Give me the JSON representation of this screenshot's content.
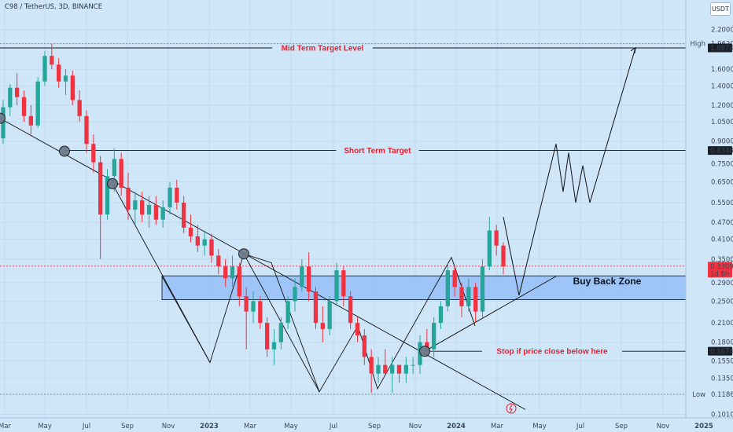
{
  "header": {
    "symbol_line": "C98 / TetherUS, 3D, BINANCE",
    "currency_button": "USDT"
  },
  "colors": {
    "background": "#cfe6f9",
    "up_candle": "#26a69a",
    "down_candle": "#ef3340",
    "annotation_red": "#e8202f",
    "zone_fill": "#8fb8f5",
    "line": "#222222"
  },
  "chart_data": {
    "type": "candlestick",
    "y_scale": "log",
    "ylim": [
      0.095,
      2.35
    ],
    "x_tick_labels": [
      "Mar",
      "May",
      "Jul",
      "Sep",
      "Nov",
      "2023",
      "Mar",
      "May",
      "Jul",
      "Sep",
      "Nov",
      "2024",
      "Mar",
      "May",
      "Jul",
      "Sep",
      "Nov",
      "2025"
    ],
    "y_tick_labels": [
      "2.2000",
      "1.9620",
      "1.6000",
      "1.4000",
      "1.2000",
      "1.0500",
      "0.9000",
      "0.7500",
      "0.6500",
      "0.5500",
      "0.4700",
      "0.4100",
      "0.3500",
      "0.2900",
      "0.2500",
      "0.2100",
      "0.1800",
      "0.1550",
      "0.1350",
      "0.1186",
      "0.1010"
    ],
    "price_badges": [
      {
        "label": "High",
        "value": "1.9620",
        "style": "plain"
      },
      {
        "label": "",
        "value": "1.8974",
        "style": "dark"
      },
      {
        "label": "",
        "value": "0.8348",
        "style": "dark"
      },
      {
        "label": "",
        "value": "0.3309",
        "sub": "1d 8h",
        "style": "red"
      },
      {
        "label": "",
        "value": "0.1674",
        "style": "dark"
      },
      {
        "label": "Low",
        "value": "0.1186",
        "style": "plain"
      }
    ],
    "levels": [
      {
        "price": 1.8974,
        "label": "Mid Term Target Level"
      },
      {
        "price": 0.8348,
        "label": "Short Term Target"
      },
      {
        "price": 0.1674,
        "label": "Stop if price close below here"
      }
    ],
    "zone": {
      "low": 0.253,
      "high": 0.306,
      "label": "Buy Back Zone"
    },
    "candles": [
      [
        0.92,
        1.25,
        0.88,
        1.18
      ],
      [
        1.18,
        1.42,
        1.1,
        1.38
      ],
      [
        1.38,
        1.55,
        1.2,
        1.28
      ],
      [
        1.28,
        1.35,
        1.05,
        1.1
      ],
      [
        1.1,
        1.2,
        0.95,
        1.02
      ],
      [
        1.02,
        1.5,
        1.0,
        1.45
      ],
      [
        1.45,
        1.85,
        1.4,
        1.78
      ],
      [
        1.78,
        1.96,
        1.6,
        1.66
      ],
      [
        1.66,
        1.75,
        1.38,
        1.45
      ],
      [
        1.45,
        1.6,
        1.3,
        1.52
      ],
      [
        1.52,
        1.58,
        1.2,
        1.25
      ],
      [
        1.25,
        1.35,
        1.05,
        1.1
      ],
      [
        1.1,
        1.15,
        0.82,
        0.88
      ],
      [
        0.88,
        0.95,
        0.7,
        0.76
      ],
      [
        0.76,
        0.8,
        0.35,
        0.5
      ],
      [
        0.5,
        0.72,
        0.48,
        0.68
      ],
      [
        0.68,
        0.85,
        0.6,
        0.78
      ],
      [
        0.78,
        0.82,
        0.58,
        0.62
      ],
      [
        0.62,
        0.7,
        0.48,
        0.52
      ],
      [
        0.52,
        0.6,
        0.46,
        0.56
      ],
      [
        0.56,
        0.6,
        0.47,
        0.5
      ],
      [
        0.5,
        0.58,
        0.45,
        0.54
      ],
      [
        0.54,
        0.58,
        0.46,
        0.48
      ],
      [
        0.48,
        0.56,
        0.45,
        0.53
      ],
      [
        0.53,
        0.65,
        0.5,
        0.62
      ],
      [
        0.62,
        0.66,
        0.52,
        0.55
      ],
      [
        0.55,
        0.58,
        0.43,
        0.45
      ],
      [
        0.45,
        0.5,
        0.4,
        0.42
      ],
      [
        0.42,
        0.46,
        0.37,
        0.39
      ],
      [
        0.39,
        0.44,
        0.36,
        0.41
      ],
      [
        0.41,
        0.43,
        0.34,
        0.36
      ],
      [
        0.36,
        0.38,
        0.31,
        0.33
      ],
      [
        0.33,
        0.35,
        0.28,
        0.3
      ],
      [
        0.3,
        0.36,
        0.28,
        0.33
      ],
      [
        0.33,
        0.34,
        0.24,
        0.26
      ],
      [
        0.26,
        0.28,
        0.17,
        0.23
      ],
      [
        0.23,
        0.27,
        0.21,
        0.25
      ],
      [
        0.25,
        0.26,
        0.2,
        0.21
      ],
      [
        0.21,
        0.22,
        0.16,
        0.17
      ],
      [
        0.17,
        0.2,
        0.15,
        0.18
      ],
      [
        0.18,
        0.22,
        0.17,
        0.21
      ],
      [
        0.21,
        0.26,
        0.2,
        0.25
      ],
      [
        0.25,
        0.3,
        0.23,
        0.28
      ],
      [
        0.28,
        0.35,
        0.27,
        0.33
      ],
      [
        0.33,
        0.37,
        0.25,
        0.27
      ],
      [
        0.27,
        0.28,
        0.2,
        0.21
      ],
      [
        0.21,
        0.24,
        0.18,
        0.2
      ],
      [
        0.2,
        0.26,
        0.19,
        0.25
      ],
      [
        0.25,
        0.34,
        0.24,
        0.32
      ],
      [
        0.32,
        0.33,
        0.24,
        0.26
      ],
      [
        0.26,
        0.27,
        0.2,
        0.21
      ],
      [
        0.21,
        0.22,
        0.18,
        0.19
      ],
      [
        0.19,
        0.2,
        0.15,
        0.16
      ],
      [
        0.16,
        0.17,
        0.12,
        0.14
      ],
      [
        0.14,
        0.16,
        0.13,
        0.15
      ],
      [
        0.15,
        0.17,
        0.14,
        0.14
      ],
      [
        0.14,
        0.16,
        0.12,
        0.15
      ],
      [
        0.15,
        0.15,
        0.13,
        0.14
      ],
      [
        0.14,
        0.16,
        0.13,
        0.15
      ],
      [
        0.15,
        0.16,
        0.14,
        0.15
      ],
      [
        0.15,
        0.19,
        0.14,
        0.18
      ],
      [
        0.18,
        0.2,
        0.16,
        0.17
      ],
      [
        0.17,
        0.22,
        0.16,
        0.21
      ],
      [
        0.21,
        0.25,
        0.2,
        0.24
      ],
      [
        0.24,
        0.34,
        0.23,
        0.32
      ],
      [
        0.32,
        0.33,
        0.26,
        0.28
      ],
      [
        0.28,
        0.29,
        0.22,
        0.24
      ],
      [
        0.24,
        0.3,
        0.23,
        0.28
      ],
      [
        0.28,
        0.29,
        0.21,
        0.23
      ],
      [
        0.23,
        0.35,
        0.22,
        0.33
      ],
      [
        0.33,
        0.49,
        0.32,
        0.44
      ],
      [
        0.44,
        0.46,
        0.36,
        0.39
      ],
      [
        0.39,
        0.4,
        0.31,
        0.33
      ]
    ]
  }
}
